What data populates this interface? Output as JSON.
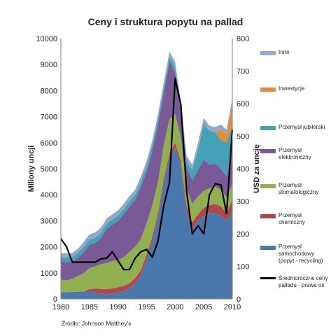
{
  "chart_data": {
    "type": "area",
    "title": "Ceny i struktura popytu na pallad",
    "xlabel": "",
    "ylabel": "Miliony uncji",
    "y2label": "USD za uncję",
    "source": "Źródło: Johnson Matthey's",
    "xlim": [
      1980,
      2010
    ],
    "ylim": [
      0,
      10000
    ],
    "y2lim": [
      0,
      800
    ],
    "x_ticks": [
      1980,
      1985,
      1990,
      1995,
      2000,
      2005,
      2010
    ],
    "y_ticks": [
      0,
      1000,
      2000,
      3000,
      4000,
      5000,
      6000,
      7000,
      8000,
      9000,
      10000
    ],
    "y2_ticks": [
      0,
      100,
      200,
      300,
      400,
      500,
      600,
      700,
      800
    ],
    "grid": false,
    "legend_position": "right",
    "x": [
      1980,
      1981,
      1982,
      1983,
      1984,
      1985,
      1986,
      1987,
      1988,
      1989,
      1990,
      1991,
      1992,
      1993,
      1994,
      1995,
      1996,
      1997,
      1998,
      1999,
      2000,
      2001,
      2002,
      2003,
      2004,
      2005,
      2006,
      2007,
      2008,
      2009,
      2010
    ],
    "series": [
      {
        "name": "Przemysł samochodowy (popyt - recycling)",
        "color": "#4a78ac",
        "values": [
          250,
          260,
          270,
          280,
          290,
          280,
          250,
          200,
          180,
          200,
          250,
          300,
          400,
          600,
          900,
          1500,
          2200,
          3100,
          4400,
          5400,
          5800,
          5100,
          3300,
          2700,
          3000,
          3200,
          3300,
          3300,
          3200,
          3000,
          3400
        ]
      },
      {
        "name": "Przemysł chemiczny",
        "color": "#b2474b",
        "values": [
          0,
          0,
          0,
          0,
          0,
          100,
          150,
          180,
          200,
          200,
          200,
          200,
          200,
          200,
          200,
          200,
          200,
          200,
          200,
          200,
          200,
          200,
          250,
          250,
          250,
          300,
          300,
          350,
          350,
          300,
          400
        ]
      },
      {
        "name": "Przemysł stomatologiczny",
        "color": "#92b050",
        "values": [
          500,
          450,
          500,
          600,
          700,
          800,
          850,
          950,
          1000,
          1050,
          1050,
          1100,
          1200,
          1200,
          1200,
          1200,
          1200,
          1200,
          1300,
          1300,
          1100,
          900,
          700,
          700,
          700,
          650,
          650,
          650,
          650,
          600,
          600
        ]
      },
      {
        "name": "Przemysł elektroniczny",
        "color": "#7a5a96",
        "values": [
          700,
          700,
          650,
          700,
          800,
          900,
          900,
          1000,
          1300,
          1400,
          1500,
          1650,
          1750,
          1800,
          2000,
          2000,
          2100,
          2200,
          2000,
          2200,
          1600,
          950,
          800,
          900,
          1000,
          1200,
          900,
          900,
          800,
          800,
          1400
        ]
      },
      {
        "name": "Przemysł jubilerski",
        "color": "#45a1b5",
        "values": [
          150,
          200,
          200,
          200,
          200,
          200,
          200,
          200,
          200,
          200,
          200,
          200,
          200,
          200,
          200,
          200,
          200,
          200,
          200,
          200,
          200,
          200,
          250,
          400,
          800,
          1400,
          1300,
          1200,
          1100,
          1300,
          800
        ]
      },
      {
        "name": "Inwestycje",
        "color": "#e28c3c",
        "values": [
          0,
          0,
          0,
          0,
          0,
          0,
          0,
          0,
          0,
          0,
          0,
          0,
          0,
          0,
          0,
          0,
          0,
          0,
          0,
          0,
          0,
          0,
          0,
          0,
          50,
          0,
          0,
          0,
          400,
          300,
          900
        ]
      },
      {
        "name": "Inne",
        "color": "#93a9cb",
        "values": [
          150,
          150,
          150,
          150,
          200,
          200,
          200,
          200,
          200,
          200,
          200,
          200,
          200,
          200,
          200,
          200,
          200,
          200,
          200,
          200,
          200,
          200,
          200,
          200,
          200,
          200,
          200,
          200,
          200,
          200,
          200
        ]
      }
    ],
    "line_series": {
      "name": "Średnioroczne ceny palladu - prawa oś",
      "color": "#000000",
      "axis": "right",
      "x": [
        1980,
        1981,
        1982,
        1983,
        1984,
        1985,
        1986,
        1987,
        1988,
        1989,
        1990,
        1991,
        1992,
        1993,
        1994,
        1995,
        1996,
        1997,
        1998,
        1999,
        2000,
        2001,
        2002,
        2003,
        2004,
        2005,
        2006,
        2007,
        2008,
        2009,
        2010
      ],
      "values": [
        185,
        160,
        113,
        113,
        113,
        113,
        113,
        123,
        125,
        145,
        117,
        90,
        90,
        125,
        145,
        152,
        128,
        178,
        286,
        358,
        678,
        596,
        330,
        200,
        225,
        200,
        320,
        354,
        350,
        262,
        520
      ]
    }
  }
}
